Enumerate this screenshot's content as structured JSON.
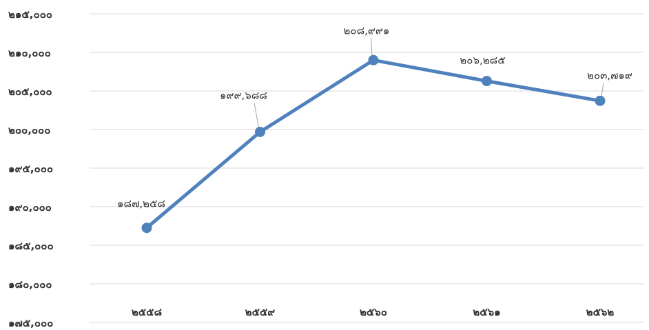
{
  "chart_data": {
    "type": "line",
    "title": "",
    "xlabel": "",
    "ylabel": "",
    "categories": [
      "๒๕๕๘",
      "๒๕๕๙",
      "๒๕๖๐",
      "๒๕๖๑",
      "๒๕๖๒"
    ],
    "series": [
      {
        "values": [
          187258,
          199688,
          208991,
          206285,
          203719
        ],
        "data_labels": [
          "๑๘๗,๒๕๘",
          "๑๙๙,๖๘๘",
          "๒๐๘,๙๙๑",
          "๒๐๖,๒๘๕",
          "๒๐๓,๗๑๙"
        ],
        "color": "#4f81bd"
      }
    ],
    "ylim": [
      175000,
      215000
    ],
    "yticks": [
      175000,
      180000,
      185000,
      190000,
      195000,
      200000,
      205000,
      210000,
      215000
    ],
    "ytick_labels": [
      "๑๗๕,๐๐๐",
      "๑๘๐,๐๐๐",
      "๑๘๕,๐๐๐",
      "๑๙๐,๐๐๐",
      "๑๙๕,๐๐๐",
      "๒๐๐,๐๐๐",
      "๒๐๕,๐๐๐",
      "๒๑๐,๐๐๐",
      "๒๑๕,๐๐๐"
    ],
    "grid": true,
    "legend": "none"
  }
}
